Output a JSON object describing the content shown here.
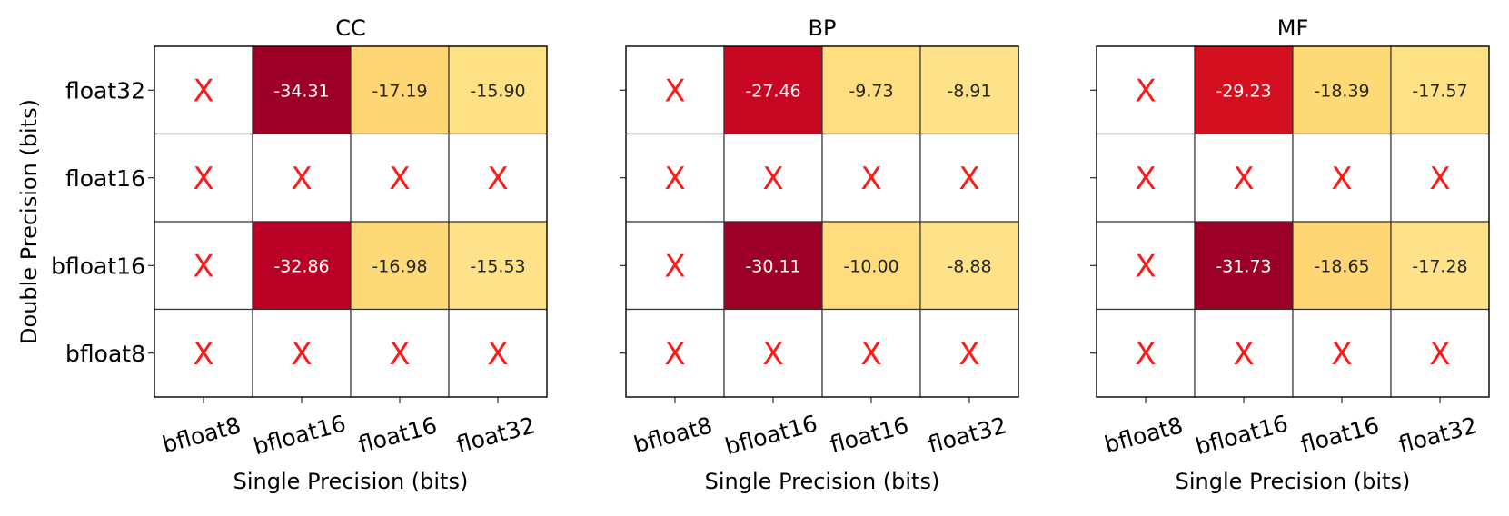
{
  "chart_data": [
    {
      "type": "heatmap",
      "title": "CC",
      "xlabel": "Single Precision (bits)",
      "ylabel": "Double Precision (bits)",
      "x_categories": [
        "bfloat8",
        "bfloat16",
        "float16",
        "float32"
      ],
      "y_categories": [
        "float32",
        "float16",
        "bfloat16",
        "bfloat8"
      ],
      "missing_marker": "X",
      "values": [
        [
          null,
          -34.31,
          -17.19,
          -15.9
        ],
        [
          null,
          null,
          null,
          null
        ],
        [
          null,
          -32.86,
          -16.98,
          -15.53
        ],
        [
          null,
          null,
          null,
          null
        ]
      ],
      "value_labels": [
        [
          "X",
          "-34.31",
          "-17.19",
          "-15.90"
        ],
        [
          "X",
          "X",
          "X",
          "X"
        ],
        [
          "X",
          "-32.86",
          "-16.98",
          "-15.53"
        ],
        [
          "X",
          "X",
          "X",
          "X"
        ]
      ]
    },
    {
      "type": "heatmap",
      "title": "BP",
      "xlabel": "Single Precision (bits)",
      "ylabel": "",
      "x_categories": [
        "bfloat8",
        "bfloat16",
        "float16",
        "float32"
      ],
      "y_categories": [
        "float32",
        "float16",
        "bfloat16",
        "bfloat8"
      ],
      "missing_marker": "X",
      "values": [
        [
          null,
          -27.46,
          -9.73,
          -8.91
        ],
        [
          null,
          null,
          null,
          null
        ],
        [
          null,
          -30.11,
          -10.0,
          -8.88
        ],
        [
          null,
          null,
          null,
          null
        ]
      ],
      "value_labels": [
        [
          "X",
          "-27.46",
          "-9.73",
          "-8.91"
        ],
        [
          "X",
          "X",
          "X",
          "X"
        ],
        [
          "X",
          "-30.11",
          "-10.00",
          "-8.88"
        ],
        [
          "X",
          "X",
          "X",
          "X"
        ]
      ]
    },
    {
      "type": "heatmap",
      "title": "MF",
      "xlabel": "Single Precision (bits)",
      "ylabel": "",
      "x_categories": [
        "bfloat8",
        "bfloat16",
        "float16",
        "float32"
      ],
      "y_categories": [
        "float32",
        "float16",
        "bfloat16",
        "bfloat8"
      ],
      "missing_marker": "X",
      "values": [
        [
          null,
          -29.23,
          -18.39,
          -17.57
        ],
        [
          null,
          null,
          null,
          null
        ],
        [
          null,
          -31.73,
          -18.65,
          -17.28
        ],
        [
          null,
          null,
          null,
          null
        ]
      ],
      "value_labels": [
        [
          "X",
          "-29.23",
          "-18.39",
          "-17.57"
        ],
        [
          "X",
          "X",
          "X",
          "X"
        ],
        [
          "X",
          "-31.73",
          "-18.65",
          "-17.28"
        ],
        [
          "X",
          "X",
          "X",
          "X"
        ]
      ]
    }
  ],
  "colors": {
    "colormap": "YlOrRd_r",
    "missing_cell": "#ffffff",
    "missing_marker": "#ff1a1a",
    "grid_line": "#333333"
  }
}
